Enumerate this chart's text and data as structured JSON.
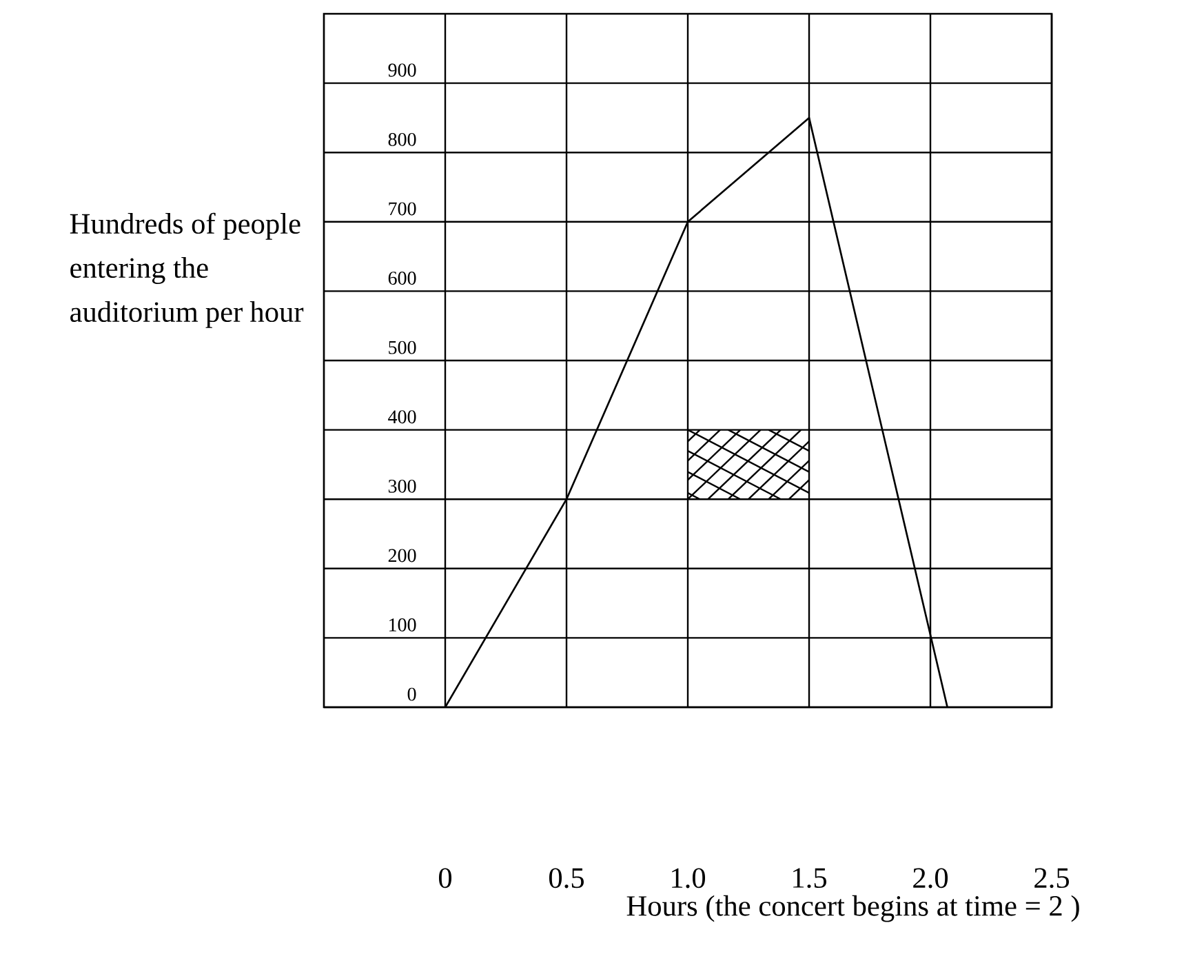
{
  "chart_data": {
    "type": "line",
    "xlabel": "Hours (the concert begins at time = 2 )",
    "ylabel": "Hundreds of people entering the auditorium per hour",
    "series": [
      {
        "color": "#000000",
        "x": [
          0,
          0.5,
          1.0,
          1.5,
          2.07
        ],
        "values": [
          0,
          300,
          700,
          850,
          0
        ]
      }
    ],
    "xlim": [
      -0.5,
      2.5
    ],
    "xticks": [
      0,
      0.5,
      {
        "value": 1.0,
        "label": "1.0"
      },
      1.5,
      {
        "value": 2.0,
        "label": "2.0"
      },
      2.5
    ],
    "ylim": [
      0,
      1000
    ],
    "yticks": [
      0,
      100,
      200,
      300,
      400,
      500,
      600,
      700,
      800,
      900
    ],
    "grid": true,
    "marker": "none",
    "line_style": "solid"
  }
}
